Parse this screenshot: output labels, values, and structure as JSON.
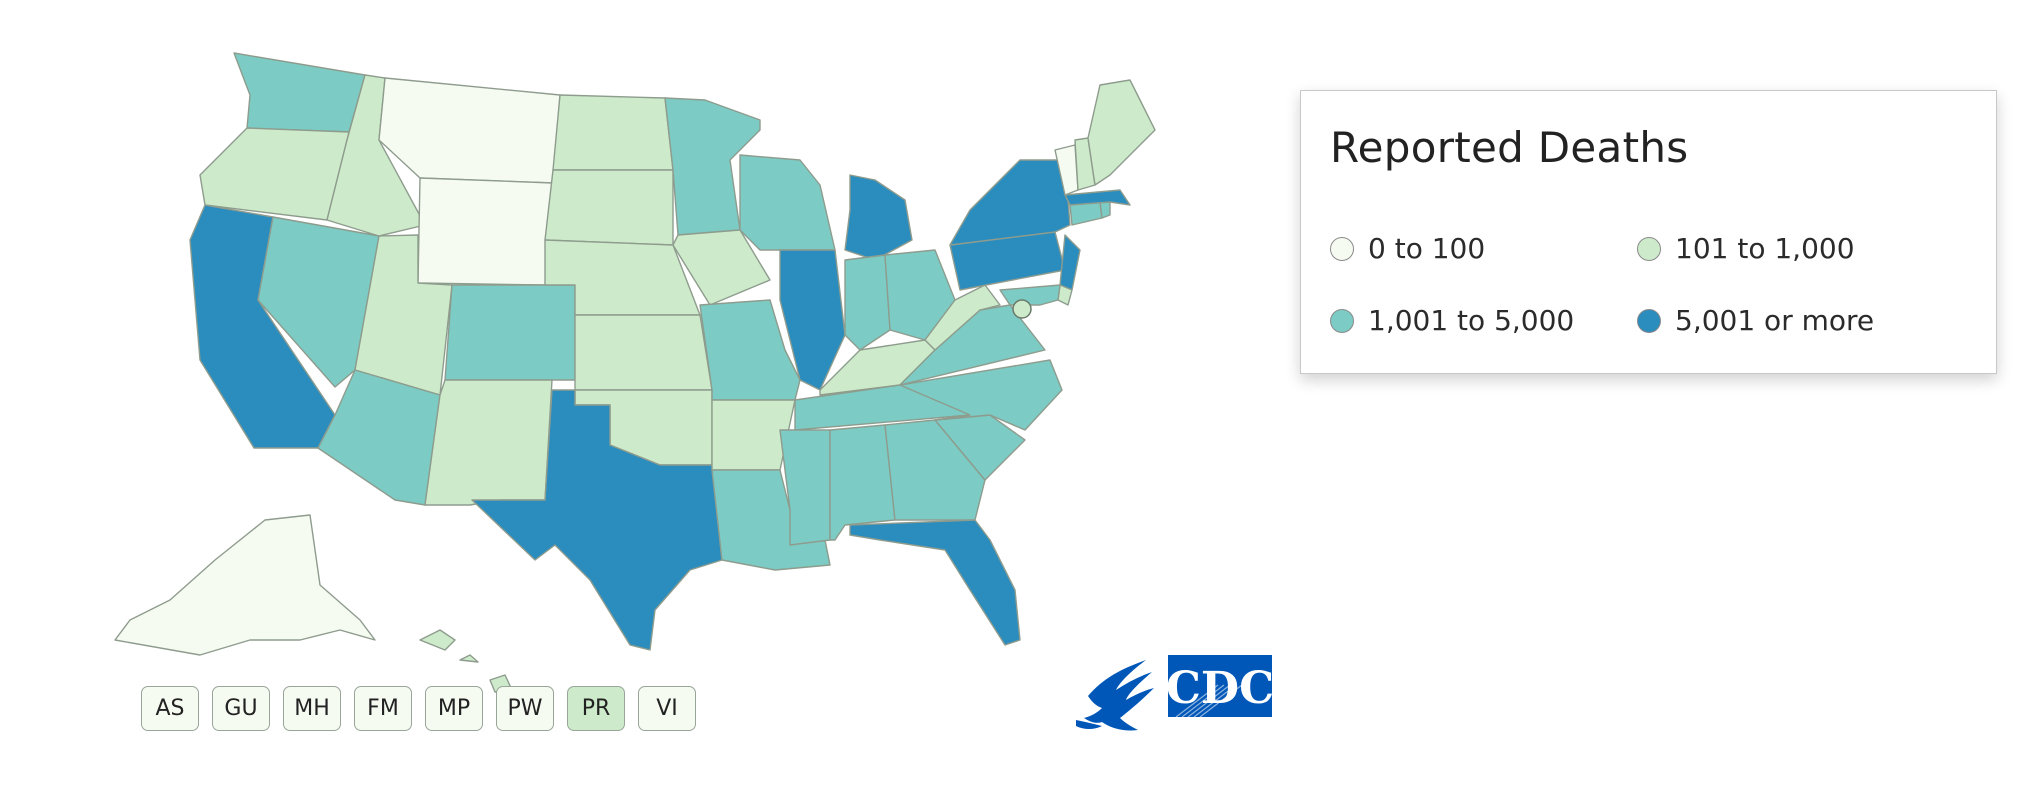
{
  "colors": {
    "c0": "#f6fbf2",
    "c1": "#cdebca",
    "c2": "#7ccbc4",
    "c3": "#2b8cbe",
    "cdc_blue": "#0057b8",
    "dc_dot": "#cdebca"
  },
  "legend": {
    "title": "Reported Deaths",
    "items": [
      {
        "label": "0 to 100",
        "color": "#f6fbf2"
      },
      {
        "label": "101 to 1,000",
        "color": "#cdebca"
      },
      {
        "label": "1,001 to 5,000",
        "color": "#7ccbc4"
      },
      {
        "label": "5,001 or more",
        "color": "#2b8cbe"
      }
    ]
  },
  "territories": [
    {
      "code": "AS",
      "color": "#f6fbf2"
    },
    {
      "code": "GU",
      "color": "#f6fbf2"
    },
    {
      "code": "MH",
      "color": "#f6fbf2"
    },
    {
      "code": "FM",
      "color": "#f6fbf2"
    },
    {
      "code": "MP",
      "color": "#f6fbf2"
    },
    {
      "code": "PW",
      "color": "#f6fbf2"
    },
    {
      "code": "PR",
      "color": "#cdebca"
    },
    {
      "code": "VI",
      "color": "#f6fbf2"
    }
  ],
  "states": {
    "WA": "#7ccbc4",
    "OR": "#cdebca",
    "CA": "#2b8cbe",
    "NV": "#7ccbc4",
    "ID": "#cdebca",
    "MT": "#f6fbf2",
    "WY": "#f6fbf2",
    "UT": "#cdebca",
    "AZ": "#7ccbc4",
    "CO": "#7ccbc4",
    "NM": "#cdebca",
    "ND": "#cdebca",
    "SD": "#cdebca",
    "NE": "#cdebca",
    "KS": "#cdebca",
    "OK": "#cdebca",
    "TX": "#2b8cbe",
    "MN": "#7ccbc4",
    "IA": "#cdebca",
    "MO": "#7ccbc4",
    "AR": "#cdebca",
    "LA": "#7ccbc4",
    "WI": "#7ccbc4",
    "IL": "#2b8cbe",
    "MI": "#2b8cbe",
    "IN": "#7ccbc4",
    "OH": "#7ccbc4",
    "KY": "#cdebca",
    "TN": "#7ccbc4",
    "MS": "#7ccbc4",
    "AL": "#7ccbc4",
    "GA": "#7ccbc4",
    "FL": "#2b8cbe",
    "SC": "#7ccbc4",
    "NC": "#7ccbc4",
    "VA": "#7ccbc4",
    "WV": "#cdebca",
    "PA": "#2b8cbe",
    "NY": "#2b8cbe",
    "NJ": "#2b8cbe",
    "DE": "#cdebca",
    "MD": "#7ccbc4",
    "CT": "#7ccbc4",
    "RI": "#7ccbc4",
    "MA": "#2b8cbe",
    "VT": "#f6fbf2",
    "NH": "#cdebca",
    "ME": "#cdebca",
    "AK": "#f6fbf2",
    "HI": "#cdebca",
    "DC": "#cdebca"
  },
  "logo": {
    "text": "CDC"
  }
}
